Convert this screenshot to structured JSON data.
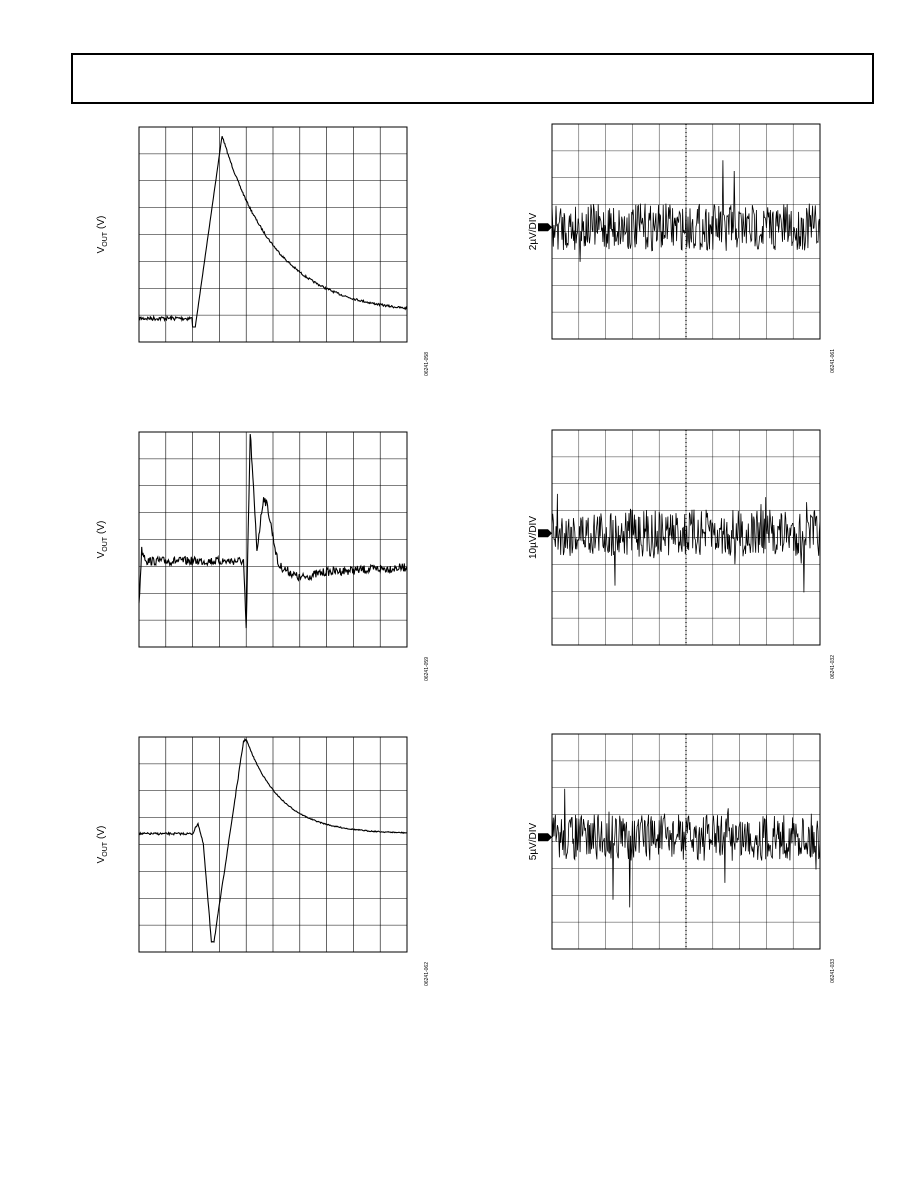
{
  "plots": [
    {
      "y_label_prefix": "V",
      "y_label_subscript": "OUT",
      "y_label_suffix": "(V)",
      "code": "06241-058"
    },
    {
      "y_label_prefix": "V",
      "y_label_subscript": "OUT",
      "y_label_suffix": "(V)",
      "code": "06241-059"
    },
    {
      "y_label_prefix": "V",
      "y_label_subscript": "OUT",
      "y_label_suffix": "(V)",
      "code": "06241-062"
    },
    {
      "y_label": "2µV/DIV",
      "code": "06241-061"
    },
    {
      "y_label": "10µV/DIV",
      "code": "06241-032"
    },
    {
      "y_label": "5µV/DIV",
      "code": "06241-033"
    }
  ]
}
